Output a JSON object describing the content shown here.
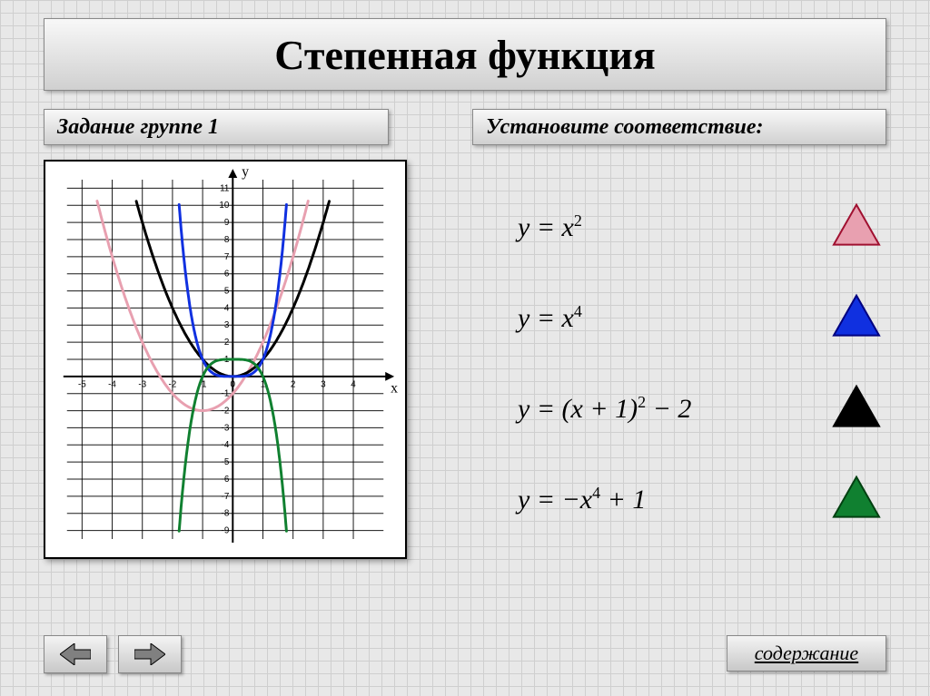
{
  "title": {
    "text": "Степенная функция",
    "fontsize": 46,
    "color": "#000000"
  },
  "subtitle_left": {
    "text": "Задание группе 1"
  },
  "subtitle_right": {
    "text": "Установите соответствие:"
  },
  "contents_label": "содержание",
  "chart": {
    "type": "line",
    "xlim": [
      -5.5,
      5
    ],
    "ylim": [
      -9.5,
      11.5
    ],
    "x_tick_min": -5,
    "x_tick_max": 4,
    "x_tick_step": 1,
    "y_tick_min": -9,
    "y_tick_max": 11,
    "y_tick_step": 1,
    "x_axis_label": "x",
    "y_axis_label": "y",
    "grid_color": "#000000",
    "grid_width": 1,
    "background_color": "#ffffff",
    "axis_color": "#000000",
    "axis_width": 2,
    "tick_fontsize": 10,
    "label_fontsize": 16,
    "curves": [
      {
        "name": "pink",
        "color": "#e8a0b0",
        "width": 3,
        "formula": "(x+1)^2 - 2",
        "xrange": [
          -4.5,
          2.5
        ]
      },
      {
        "name": "black",
        "color": "#000000",
        "width": 3,
        "formula": "x^2",
        "xrange": [
          -3.2,
          3.2
        ]
      },
      {
        "name": "blue",
        "color": "#1030e0",
        "width": 3,
        "formula": "x^4",
        "xrange": [
          -1.78,
          1.78
        ]
      },
      {
        "name": "green",
        "color": "#108030",
        "width": 3,
        "formula": "-x^4 + 1",
        "xrange": [
          -1.78,
          1.78
        ]
      }
    ]
  },
  "equations": [
    {
      "html": "y = x<span class='sup'>2</span>",
      "triangle_fill": "#e8a0b0",
      "triangle_stroke": "#a01030"
    },
    {
      "html": "y = x<span class='sup'>4</span>",
      "triangle_fill": "#1030e0",
      "triangle_stroke": "#000080"
    },
    {
      "html": "y = (x + 1)<span class='sup'>2</span> &minus; 2",
      "triangle_fill": "#000000",
      "triangle_stroke": "#000000"
    },
    {
      "html": "y = &minus;x<span class='sup'>4</span> + 1",
      "triangle_fill": "#108030",
      "triangle_stroke": "#004010"
    }
  ],
  "colors": {
    "page_bg": "#e8e8e8",
    "grid_line": "#cfcfcf",
    "panel_top": "#f8f8f8",
    "panel_bottom": "#d0d0d0",
    "panel_border": "#888888"
  }
}
